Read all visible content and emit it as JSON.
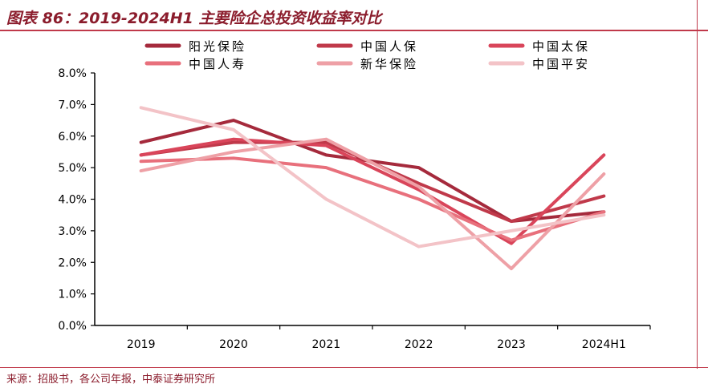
{
  "title": "图表 86：2019-2024H1 主要险企总投资收益率对比",
  "source": "来源：招股书，各公司年报，中泰证券研究所",
  "chart_data": {
    "type": "line",
    "categories": [
      "2019",
      "2020",
      "2021",
      "2022",
      "2023",
      "2024H1"
    ],
    "y_ticks": [
      "0.0%",
      "1.0%",
      "2.0%",
      "3.0%",
      "4.0%",
      "5.0%",
      "6.0%",
      "7.0%",
      "8.0%"
    ],
    "ylim": [
      0,
      8
    ],
    "unit": "%",
    "legend_position": "top",
    "grid": false,
    "series": [
      {
        "name": "阳光保险",
        "color": "#a52a3c",
        "values": [
          5.8,
          6.5,
          5.4,
          5.0,
          3.3,
          3.6
        ]
      },
      {
        "name": "中国人保",
        "color": "#c0394a",
        "values": [
          5.4,
          5.8,
          5.8,
          4.5,
          3.3,
          4.1
        ]
      },
      {
        "name": "中国太保",
        "color": "#d9455a",
        "values": [
          5.4,
          5.9,
          5.7,
          4.3,
          2.6,
          5.4
        ]
      },
      {
        "name": "中国人寿",
        "color": "#e8707c",
        "values": [
          5.2,
          5.3,
          5.0,
          4.0,
          2.7,
          3.6
        ]
      },
      {
        "name": "新华保险",
        "color": "#eea0a6",
        "values": [
          4.9,
          5.5,
          5.9,
          4.4,
          1.8,
          4.8
        ]
      },
      {
        "name": "中国平安",
        "color": "#f3c3c7",
        "values": [
          6.9,
          6.2,
          4.0,
          2.5,
          3.0,
          3.5
        ]
      }
    ]
  }
}
